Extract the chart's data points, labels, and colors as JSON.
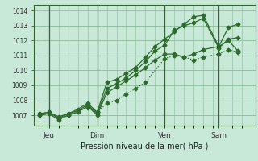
{
  "background_color": "#c8e8d8",
  "plot_bg_color": "#c8e8d8",
  "line_color": "#2d6a2d",
  "grid_color": "#88bb99",
  "vline_color": "#336633",
  "xlabel": "Pression niveau de la mer( hPa )",
  "yticks": [
    1007,
    1008,
    1009,
    1010,
    1011,
    1012,
    1013,
    1014
  ],
  "ylim": [
    1006.3,
    1014.4
  ],
  "xlim": [
    -0.3,
    11.2
  ],
  "xtick_labels": [
    "Jeu",
    "Dim",
    "Ven",
    "Sam"
  ],
  "xtick_positions": [
    0.5,
    3.0,
    6.5,
    9.3
  ],
  "vline_positions": [
    0.5,
    3.0,
    6.5,
    9.3
  ],
  "series": [
    {
      "x": [
        0.0,
        0.5,
        1.0,
        1.5,
        2.0,
        2.5,
        3.0,
        3.5,
        4.0,
        4.5,
        5.0,
        5.5,
        6.5,
        7.0,
        7.5,
        8.0,
        8.5,
        9.3,
        9.8,
        10.3
      ],
      "y": [
        1007.0,
        1007.1,
        1006.8,
        1007.0,
        1007.3,
        1007.5,
        1007.2,
        1007.8,
        1008.0,
        1008.4,
        1008.8,
        1009.2,
        1010.8,
        1011.0,
        1010.9,
        1010.7,
        1010.9,
        1011.1,
        1011.4,
        1011.2
      ],
      "linestyle": ":",
      "marker": "D",
      "markersize": 2.5,
      "linewidth": 0.9
    },
    {
      "x": [
        0.0,
        0.5,
        1.0,
        1.5,
        2.0,
        2.5,
        3.0,
        3.5,
        4.0,
        4.5,
        5.0,
        5.5,
        6.0,
        6.5,
        7.0,
        7.5,
        8.0,
        8.5,
        9.3,
        9.8,
        10.3
      ],
      "y": [
        1007.0,
        1007.1,
        1006.7,
        1007.0,
        1007.2,
        1007.6,
        1007.0,
        1008.5,
        1008.9,
        1009.3,
        1009.7,
        1010.2,
        1010.7,
        1011.1,
        1011.1,
        1010.9,
        1011.1,
        1011.4,
        1011.6,
        1012.0,
        1011.3
      ],
      "linestyle": "-",
      "marker": "D",
      "markersize": 2.5,
      "linewidth": 0.9
    },
    {
      "x": [
        0.0,
        0.5,
        1.0,
        1.5,
        2.0,
        2.5,
        3.0,
        3.5,
        4.0,
        4.5,
        5.0,
        5.5,
        6.0,
        6.5,
        7.0,
        7.5,
        8.0,
        8.5,
        9.3,
        9.8,
        10.3
      ],
      "y": [
        1007.1,
        1007.2,
        1006.8,
        1007.1,
        1007.3,
        1007.7,
        1007.1,
        1008.8,
        1009.1,
        1009.5,
        1010.0,
        1010.6,
        1011.3,
        1011.7,
        1012.7,
        1013.0,
        1013.2,
        1013.5,
        1011.5,
        1012.1,
        1012.2
      ],
      "linestyle": "-",
      "marker": "D",
      "markersize": 2.5,
      "linewidth": 0.9
    },
    {
      "x": [
        0.0,
        0.5,
        1.0,
        1.5,
        2.0,
        2.5,
        3.0,
        3.5,
        4.0,
        4.5,
        5.0,
        5.5,
        6.0,
        6.5,
        7.0,
        7.5,
        8.0,
        8.5,
        9.3,
        9.8,
        10.3
      ],
      "y": [
        1007.1,
        1007.2,
        1006.9,
        1007.1,
        1007.4,
        1007.8,
        1007.2,
        1009.2,
        1009.4,
        1009.8,
        1010.2,
        1010.9,
        1011.6,
        1012.1,
        1012.6,
        1013.1,
        1013.6,
        1013.7,
        1011.6,
        1012.9,
        1013.1
      ],
      "linestyle": "-",
      "marker": "D",
      "markersize": 2.5,
      "linewidth": 0.9
    }
  ]
}
